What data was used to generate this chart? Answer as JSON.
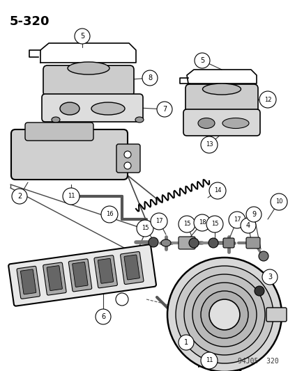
{
  "title": "5–320",
  "watermark": "94J05  320",
  "bg_color": "#ffffff",
  "line_color": "#000000",
  "fig_w": 4.14,
  "fig_h": 5.33,
  "dpi": 100
}
